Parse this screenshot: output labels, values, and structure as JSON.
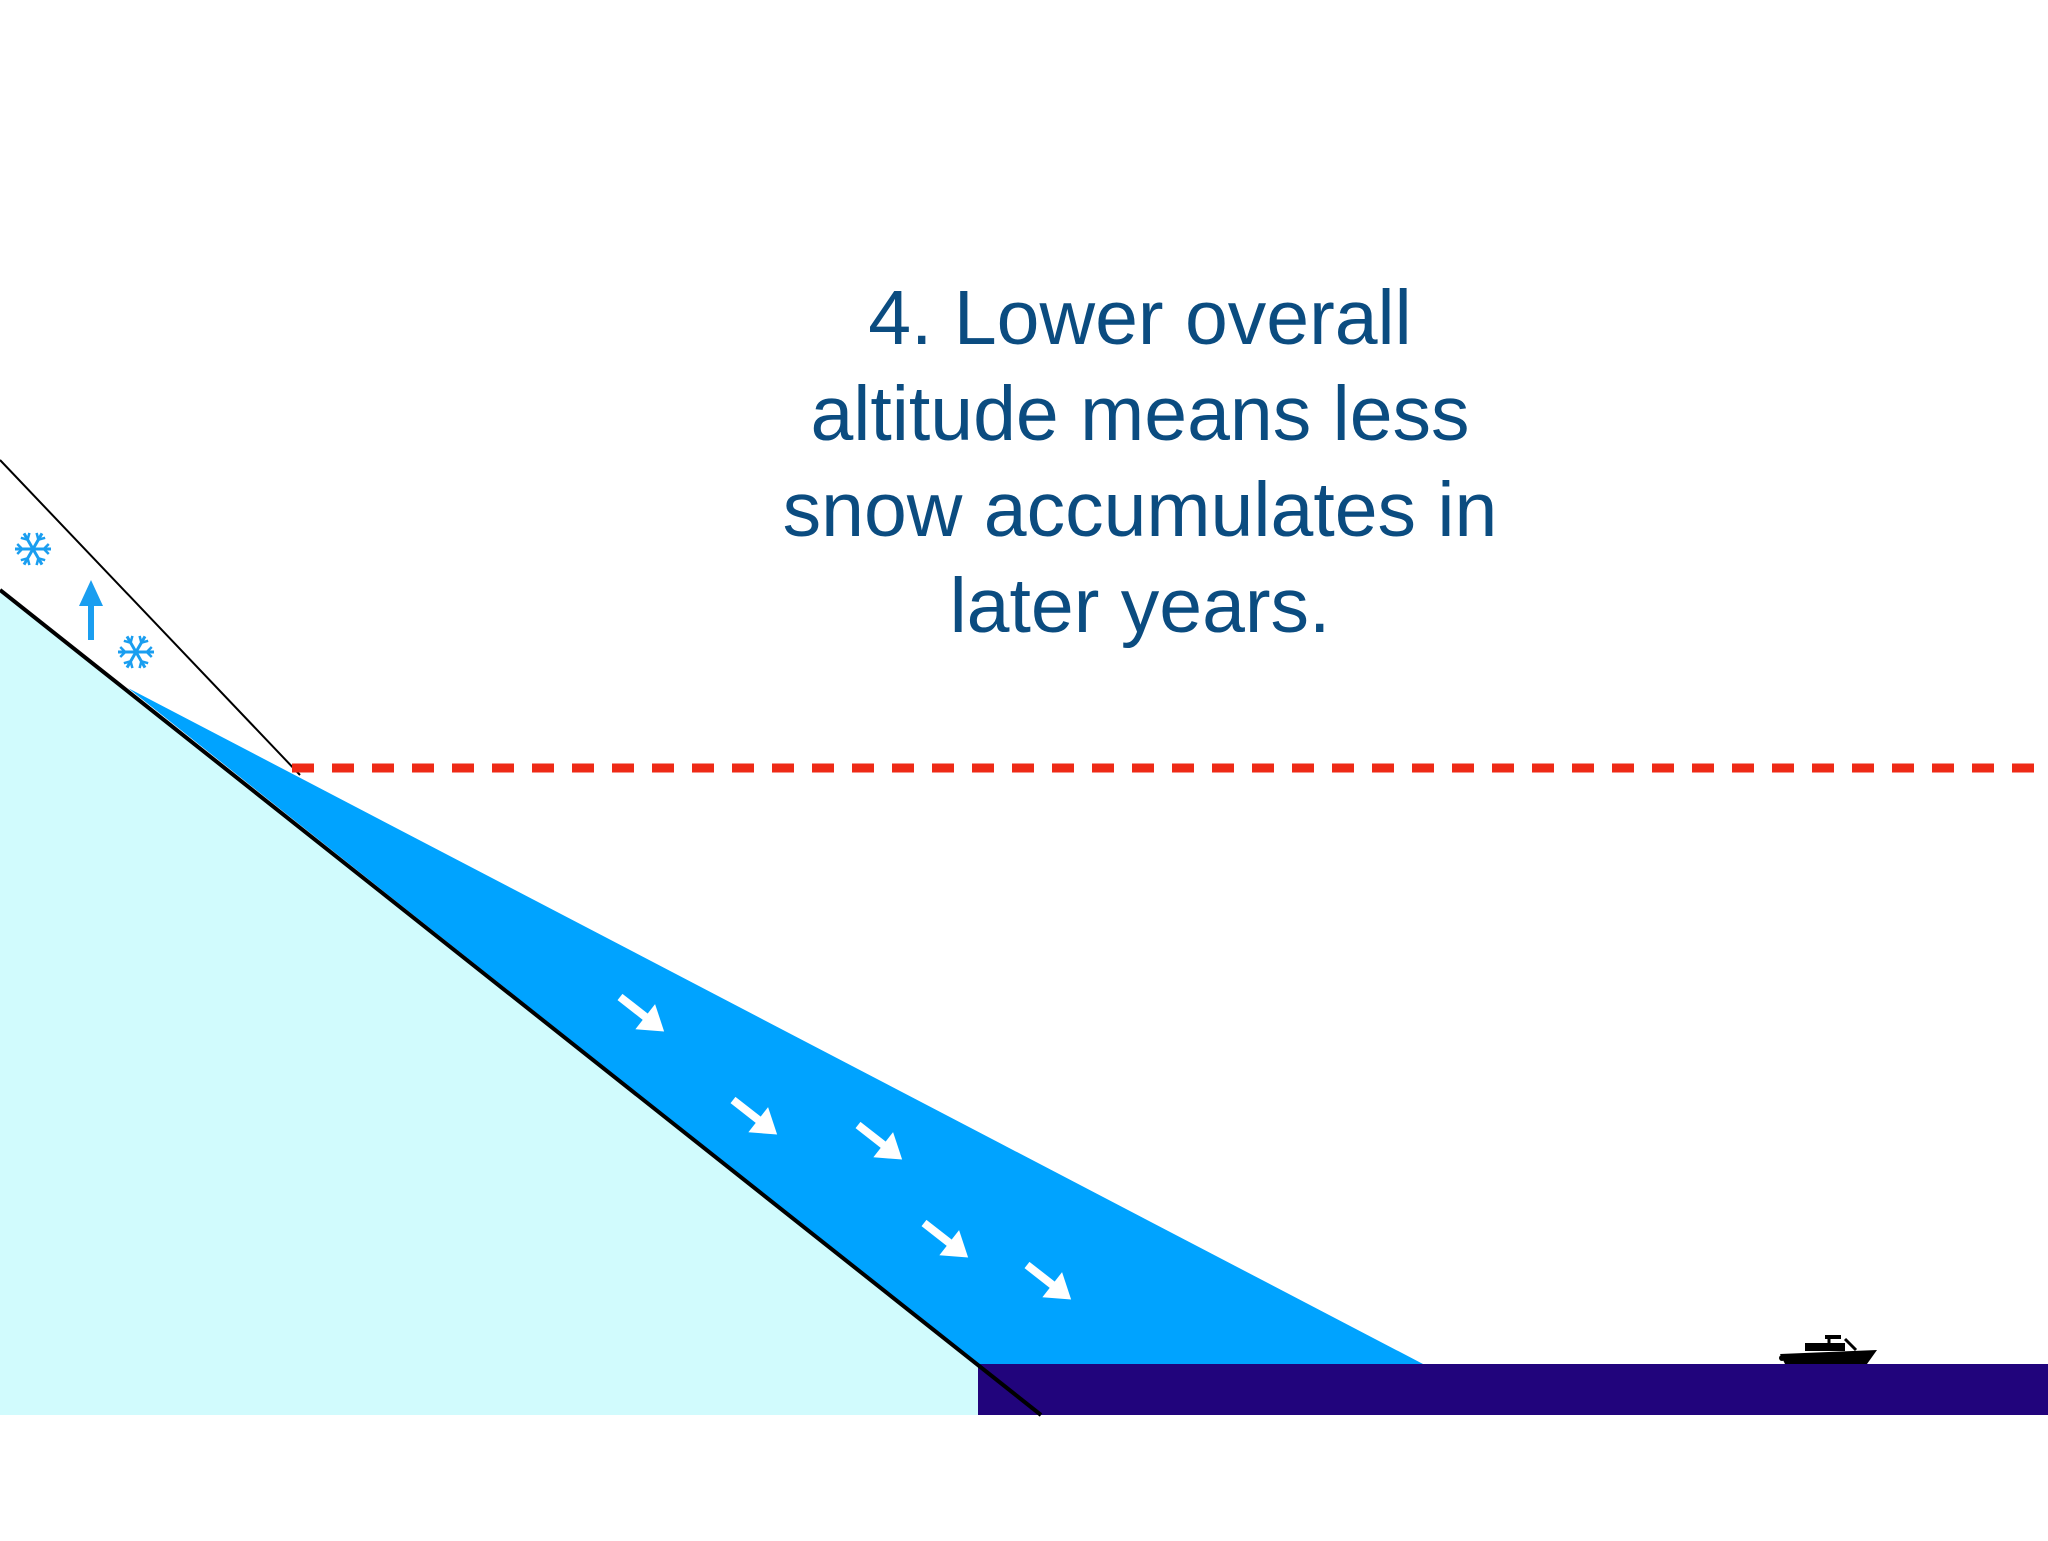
{
  "diagram": {
    "caption_lines": [
      "4. Lower overall",
      "altitude means less",
      "snow accumulates in",
      "later years."
    ],
    "colors": {
      "caption": "#0b4c80",
      "mountain": "#d1fbfd",
      "glacier": "#00a3ff",
      "sea": "#21047c",
      "snow_line": "#ee2a16",
      "snow_icon": "#1a9ef0",
      "flow_arrow": "#ffffff",
      "outline": "#000000"
    },
    "icons": {
      "snowflake_upper": "snowflake-icon",
      "snowflake_lower": "snowflake-icon",
      "uplift_arrow": "up-arrow-icon",
      "boat": "boat-icon",
      "flow_arrows": "down-right-arrow-icon"
    }
  }
}
